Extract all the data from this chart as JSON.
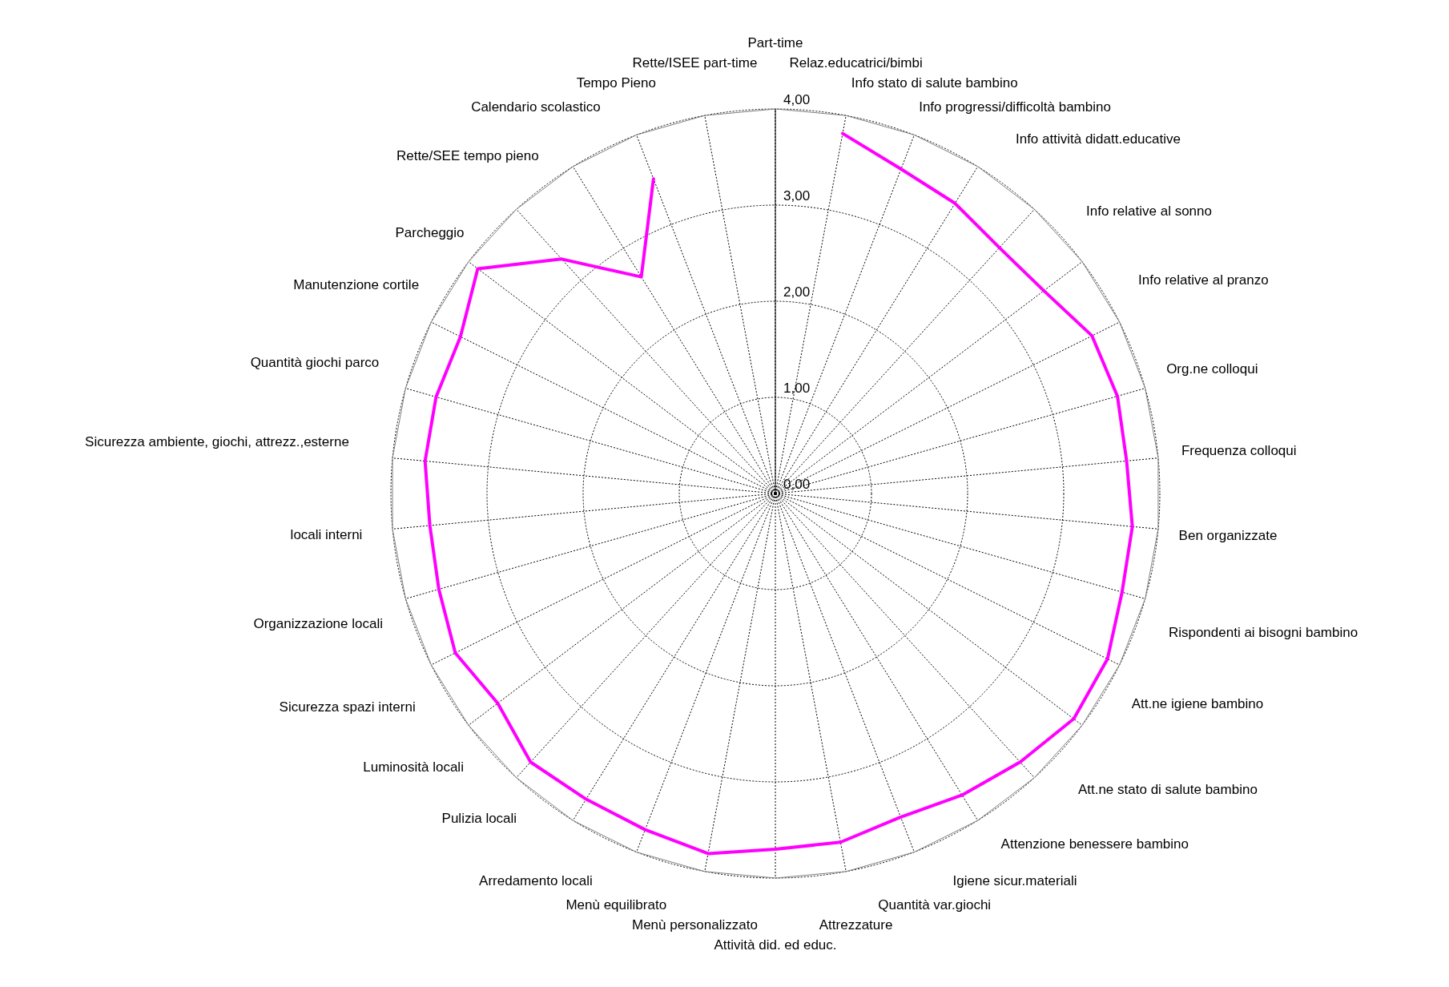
{
  "chart_data": {
    "type": "radar",
    "categories": [
      "Part-time",
      "Relaz.educatrici/bimbi",
      "Info stato di salute bambino",
      "Info  progressi/difficoltà bambino",
      "Info attività didatt.educative",
      "Info relative al sonno",
      "Info relative al pranzo",
      "Org.ne colloqui",
      "Frequenza colloqui",
      "Ben organizzate",
      "Rispondenti ai bisogni bambino",
      "Att.ne igiene bambino",
      "Att.ne stato di salute bambino",
      "Attenzione benessere bambino",
      "Igiene sicur.materiali",
      "Quantità var.giochi",
      "Attrezzature",
      "Attività did. ed educ.",
      "Menù personalizzato",
      "Menù equilibrato",
      "Arredamento locali",
      "Pulizia locali",
      "Luminosità locali",
      "Sicurezza spazi interni",
      "Organizzazione locali",
      "locali interni",
      "Sicurezza ambiente, giochi, attrezz.,esterne",
      "Quantità giochi  parco",
      "Manutenzione cortile",
      "Parcheggio",
      "Rette/SEE tempo pieno",
      "Calendario scolastico",
      "Tempo Pieno",
      "Rette/ISEE part-time"
    ],
    "series": [
      {
        "color": "#ff00ff",
        "values": [
          null,
          3.81,
          3.62,
          3.55,
          3.46,
          3.5,
          3.68,
          3.7,
          3.67,
          3.73,
          3.75,
          3.86,
          3.89,
          3.78,
          3.69,
          3.61,
          3.69,
          3.7,
          3.81,
          3.75,
          3.74,
          3.78,
          3.62,
          3.72,
          3.64,
          3.61,
          3.66,
          3.67,
          3.66,
          3.88,
          3.3,
          2.65,
          3.51,
          null
        ]
      }
    ],
    "ylim": [
      0,
      4
    ],
    "yticks": [
      {
        "value": 0,
        "label": "0,00"
      },
      {
        "value": 1,
        "label": "1,00"
      },
      {
        "value": 2,
        "label": "2,00"
      },
      {
        "value": 3,
        "label": "3,00"
      },
      {
        "value": 4,
        "label": "4,00"
      }
    ],
    "grid": true,
    "legend": false
  }
}
